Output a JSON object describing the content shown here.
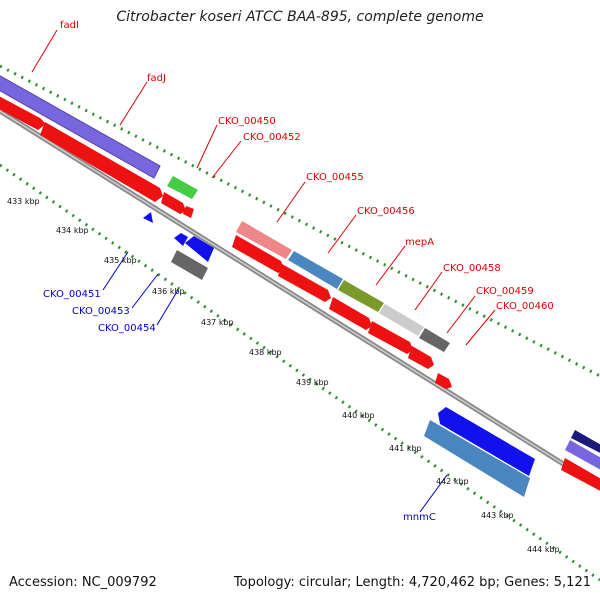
{
  "title": "Citrobacter koseri ATCC BAA-895, complete genome",
  "footer": {
    "accession": "Accession: NC_009792",
    "summary": "Topology: circular; Length: 4,720,462 bp; Genes: 5,121"
  },
  "colors": {
    "forward_cds": "#ee1111",
    "reverse_cds": "#1111ee",
    "gene_label_forward": "#dd0000",
    "gene_label_reverse": "#0000cc",
    "tick": "#2e8b2e",
    "backbone": "#888888"
  },
  "ticks": [
    {
      "label": "433 kbp",
      "pos": 433
    },
    {
      "label": "434 kbp",
      "pos": 434
    },
    {
      "label": "435 kbp",
      "pos": 435
    },
    {
      "label": "436 kbp",
      "pos": 436
    },
    {
      "label": "437 kbp",
      "pos": 437
    },
    {
      "label": "438 kbp",
      "pos": 438
    },
    {
      "label": "439 kbp",
      "pos": 439
    },
    {
      "label": "440 kbp",
      "pos": 440
    },
    {
      "label": "441 kbp",
      "pos": 441
    },
    {
      "label": "442 kbp",
      "pos": 442
    },
    {
      "label": "443 kbp",
      "pos": 443
    },
    {
      "label": "444 kbp",
      "pos": 444
    }
  ],
  "gene_labels": [
    {
      "name": "fadI",
      "strand": "forward"
    },
    {
      "name": "fadJ",
      "strand": "forward"
    },
    {
      "name": "CKO_00450",
      "strand": "forward"
    },
    {
      "name": "CKO_00452",
      "strand": "forward"
    },
    {
      "name": "CKO_00455",
      "strand": "forward"
    },
    {
      "name": "CKO_00456",
      "strand": "forward"
    },
    {
      "name": "mepA",
      "strand": "forward"
    },
    {
      "name": "CKO_00458",
      "strand": "forward"
    },
    {
      "name": "CKO_00459",
      "strand": "forward"
    },
    {
      "name": "CKO_00460",
      "strand": "forward"
    },
    {
      "name": "CKO_00451",
      "strand": "reverse"
    },
    {
      "name": "CKO_00453",
      "strand": "reverse"
    },
    {
      "name": "CKO_00454",
      "strand": "reverse"
    },
    {
      "name": "mnmC",
      "strand": "reverse"
    }
  ]
}
